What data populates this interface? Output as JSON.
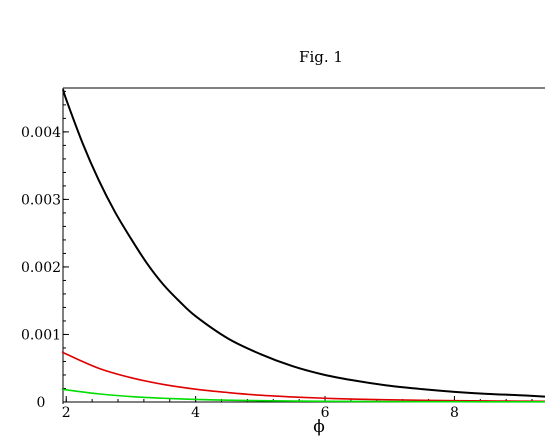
{
  "chart_data": {
    "type": "line",
    "title": "Fig. 1",
    "xlabel": "ϕ",
    "ylabel": "",
    "xlim": [
      1.95,
      9.4
    ],
    "ylim": [
      -3e-05,
      0.00465
    ],
    "x_ticks": [
      2,
      4,
      6,
      8
    ],
    "x_tick_labels": [
      "2",
      "4",
      "6",
      "8"
    ],
    "y_ticks": [
      0,
      0.001,
      0.002,
      0.003,
      0.004
    ],
    "y_tick_labels": [
      "0",
      "0.001",
      "0.002",
      "0.003",
      "0.004"
    ],
    "grid": false,
    "legend": "none",
    "series": [
      {
        "color": "#000000",
        "x": [
          1.95,
          2.0,
          2.25,
          2.5,
          2.75,
          3.0,
          3.25,
          3.5,
          3.75,
          4.0,
          4.5,
          5.0,
          5.5,
          6.0,
          6.5,
          7.0,
          7.5,
          8.0,
          8.5,
          9.0,
          9.4
        ],
        "y": [
          0.00463,
          0.00448,
          0.00384,
          0.00329,
          0.00282,
          0.00242,
          0.00205,
          0.00174,
          0.00149,
          0.00127,
          0.00094,
          0.00071,
          0.00053,
          0.0004,
          0.00031,
          0.00024,
          0.00019,
          0.00015,
          0.00012,
          0.0001,
          8e-05
        ]
      },
      {
        "color": "#e00000",
        "x": [
          1.95,
          2.0,
          2.5,
          3.0,
          3.5,
          4.0,
          4.5,
          5.0,
          5.5,
          6.0,
          6.5,
          7.0,
          7.5,
          8.0,
          8.5,
          9.0,
          9.4
        ],
        "y": [
          0.00074,
          0.00071,
          0.0005,
          0.00036,
          0.00026,
          0.00019,
          0.00014,
          0.0001,
          7.5e-05,
          5.5e-05,
          4.2e-05,
          3.2e-05,
          2.5e-05,
          1.9e-05,
          1.5e-05,
          1.2e-05,
          1e-05
        ]
      },
      {
        "color": "#00dd00",
        "x": [
          1.95,
          2.0,
          2.5,
          3.0,
          3.5,
          4.0,
          4.5,
          5.0,
          5.5,
          6.0,
          6.5,
          7.0,
          7.5,
          8.0,
          8.5,
          9.0,
          9.4
        ],
        "y": [
          0.00019,
          0.00018,
          0.00012,
          8e-05,
          5.5e-05,
          3.8e-05,
          2.7e-05,
          1.9e-05,
          1.4e-05,
          1e-05,
          7.8e-06,
          6e-06,
          4.7e-06,
          3.7e-06,
          3e-06,
          2.4e-06,
          2e-06
        ]
      }
    ]
  }
}
